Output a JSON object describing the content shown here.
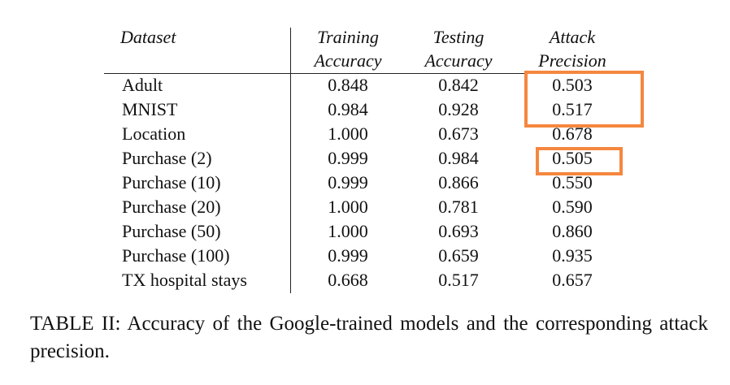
{
  "table": {
    "headers": {
      "dataset": "Dataset",
      "training": [
        "Training",
        "Accuracy"
      ],
      "testing": [
        "Testing",
        "Accuracy"
      ],
      "attack": [
        "Attack",
        "Precision"
      ]
    },
    "rows": [
      {
        "dataset": "Adult",
        "training": "0.848",
        "testing": "0.842",
        "attack": "0.503",
        "highlighted": true
      },
      {
        "dataset": "MNIST",
        "training": "0.984",
        "testing": "0.928",
        "attack": "0.517",
        "highlighted": true
      },
      {
        "dataset": "Location",
        "training": "1.000",
        "testing": "0.673",
        "attack": "0.678",
        "highlighted": false
      },
      {
        "dataset": "Purchase (2)",
        "training": "0.999",
        "testing": "0.984",
        "attack": "0.505",
        "highlighted": true
      },
      {
        "dataset": "Purchase (10)",
        "training": "0.999",
        "testing": "0.866",
        "attack": "0.550",
        "highlighted": false
      },
      {
        "dataset": "Purchase (20)",
        "training": "1.000",
        "testing": "0.781",
        "attack": "0.590",
        "highlighted": false
      },
      {
        "dataset": "Purchase (50)",
        "training": "1.000",
        "testing": "0.693",
        "attack": "0.860",
        "highlighted": false
      },
      {
        "dataset": "Purchase (100)",
        "training": "0.999",
        "testing": "0.659",
        "attack": "0.935",
        "highlighted": false
      },
      {
        "dataset": "TX hospital stays",
        "training": "0.668",
        "testing": "0.517",
        "attack": "0.657",
        "highlighted": false
      }
    ]
  },
  "caption": "TABLE II: Accuracy of the Google-trained models and the corresponding attack precision.",
  "highlight_color": "#f5873f"
}
